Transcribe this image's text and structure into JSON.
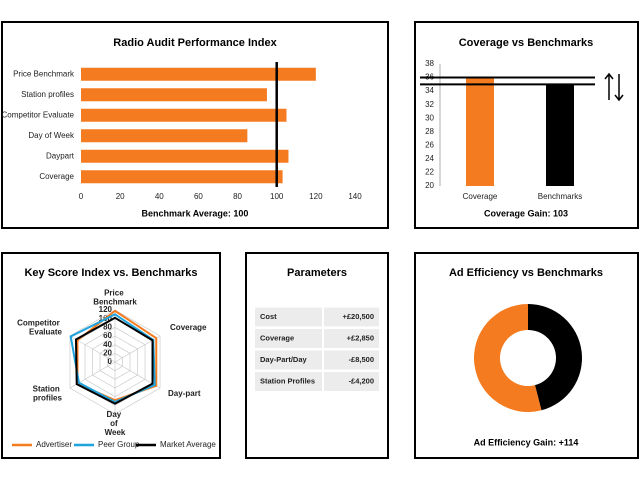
{
  "chart_data": [
    {
      "type": "hbar",
      "title": "Radio Audit Performance Index",
      "categories": [
        "Price Benchmark",
        "Station profiles",
        "Competitor Evaluate",
        "Day of Week",
        "Daypart",
        "Coverage"
      ],
      "values": [
        120,
        95,
        105,
        85,
        106,
        103
      ],
      "color": "#f47b20",
      "xlim": [
        0,
        140
      ],
      "xticks": [
        0,
        20,
        40,
        60,
        80,
        100,
        120,
        140
      ],
      "reference_line": 100,
      "footer": "Benchmark Average: 100"
    },
    {
      "type": "bar",
      "title": "Coverage vs Benchmarks",
      "categories": [
        "Coverage",
        "Benchmarks"
      ],
      "values": [
        36,
        35
      ],
      "colors": [
        "#f47b20",
        "#000000"
      ],
      "ylim": [
        20,
        38
      ],
      "yticks": [
        20,
        22,
        24,
        26,
        28,
        30,
        32,
        34,
        36,
        38
      ],
      "footer": "Coverage Gain: 103"
    },
    {
      "type": "radar",
      "title": "Key Score Index vs. Benchmarks",
      "categories": [
        "Price Benchmark",
        "Coverage",
        "Day-part",
        "Day of Week",
        "Station profiles",
        "Competitor Evaluate"
      ],
      "rlim": [
        0,
        120
      ],
      "rticks": [
        0,
        20,
        40,
        60,
        80,
        100,
        120
      ],
      "series": [
        {
          "name": "Advertiser",
          "color": "#f47b20",
          "values": [
            118,
            110,
            110,
            88,
            100,
            100
          ]
        },
        {
          "name": "Peer Group",
          "color": "#1fa3dc",
          "values": [
            110,
            102,
            106,
            92,
            96,
            118
          ]
        },
        {
          "name": "Market Average",
          "color": "#000000",
          "values": [
            102,
            100,
            100,
            96,
            102,
            104
          ]
        }
      ]
    },
    {
      "type": "donut",
      "title": "Ad Efficiency vs Benchmarks",
      "values": [
        46,
        54
      ],
      "colors": [
        "#000000",
        "#f47b20"
      ],
      "footer": "Ad Efficiency Gain: +114"
    }
  ],
  "parameters": {
    "title": "Parameters",
    "rows": [
      [
        "Cost",
        "+£20,500"
      ],
      [
        "Coverage",
        "+£2,850"
      ],
      [
        "Day-Part/Day",
        "-£8,500"
      ],
      [
        "Station Profiles",
        "-£4,200"
      ]
    ]
  }
}
